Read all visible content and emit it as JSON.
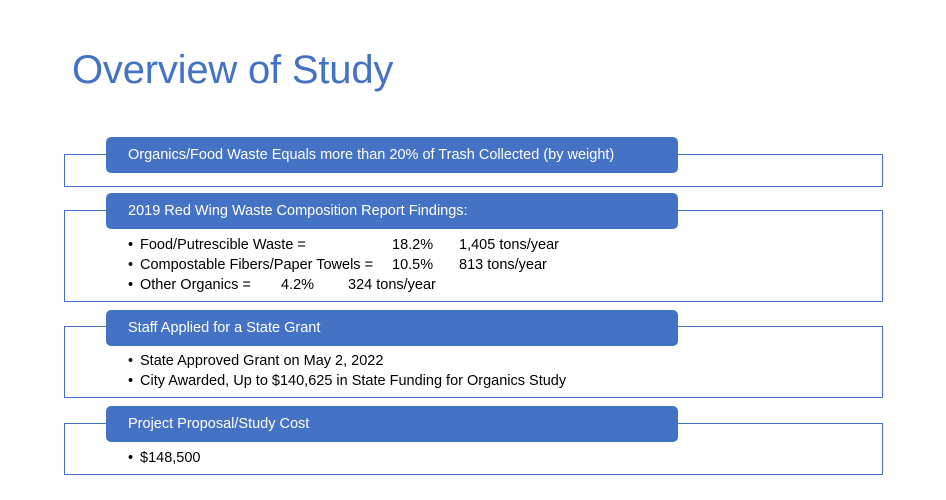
{
  "title": "Overview of Study",
  "sections": [
    {
      "header": "Organics/Food Waste Equals more than 20% of Trash Collected (by weight)"
    },
    {
      "header": "2019 Red Wing Waste Composition Report Findings:",
      "items": [
        {
          "label": "Food/Putrescible Waste =",
          "percent": "18.2%",
          "tons": "1,405 tons/year"
        },
        {
          "label": "Compostable Fibers/Paper Towels =",
          "percent": "10.5%",
          "tons": "813 tons/year"
        },
        {
          "label": "Other Organics =",
          "percent": "4.2%",
          "tons": "324 tons/year"
        }
      ]
    },
    {
      "header": "Staff Applied for a State Grant",
      "items": [
        "State Approved Grant on May 2, 2022",
        "City Awarded, Up to $140,625 in State Funding for Organics Study"
      ]
    },
    {
      "header": "Project Proposal/Study Cost",
      "items": [
        "$148,500"
      ]
    }
  ],
  "bullet_char": "•",
  "colors": {
    "accent": "#4472c4",
    "text": "#000000",
    "background": "#ffffff"
  }
}
